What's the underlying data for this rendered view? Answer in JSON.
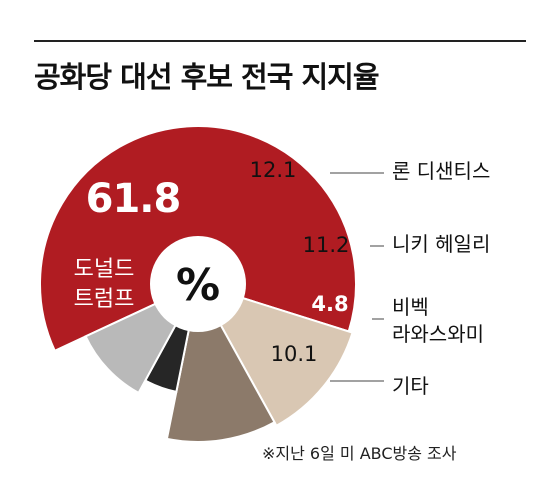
{
  "chart_data": {
    "type": "pie",
    "title": "공화당 대선 후보 전국 지지율",
    "center_label": "%",
    "slices": [
      {
        "label": "도널드 트럼프",
        "value": 61.8,
        "color": "#b01c22"
      },
      {
        "label": "론 디샌티스",
        "value": 12.1,
        "color": "#d9c7b3"
      },
      {
        "label": "니키 헤일리",
        "value": 11.2,
        "color": "#8c7a6a"
      },
      {
        "label": "비벡 라와스와미",
        "value": 4.8,
        "color": "#262626"
      },
      {
        "label": "기타",
        "value": 10.1,
        "color": "#b9b9b9"
      }
    ],
    "value_labels": [
      "61.8",
      "12.1",
      "11.2",
      "4.8",
      "10.1"
    ],
    "legend": [
      {
        "lines": [
          "론 디샌티스"
        ]
      },
      {
        "lines": [
          "니키 헤일리"
        ]
      },
      {
        "lines": [
          "비벡",
          "라와스와미"
        ]
      },
      {
        "lines": [
          "기타"
        ]
      }
    ],
    "trump_lines": [
      "도널드",
      "트럼프"
    ],
    "source": "※지난 6일 미 ABC방송 조사"
  }
}
